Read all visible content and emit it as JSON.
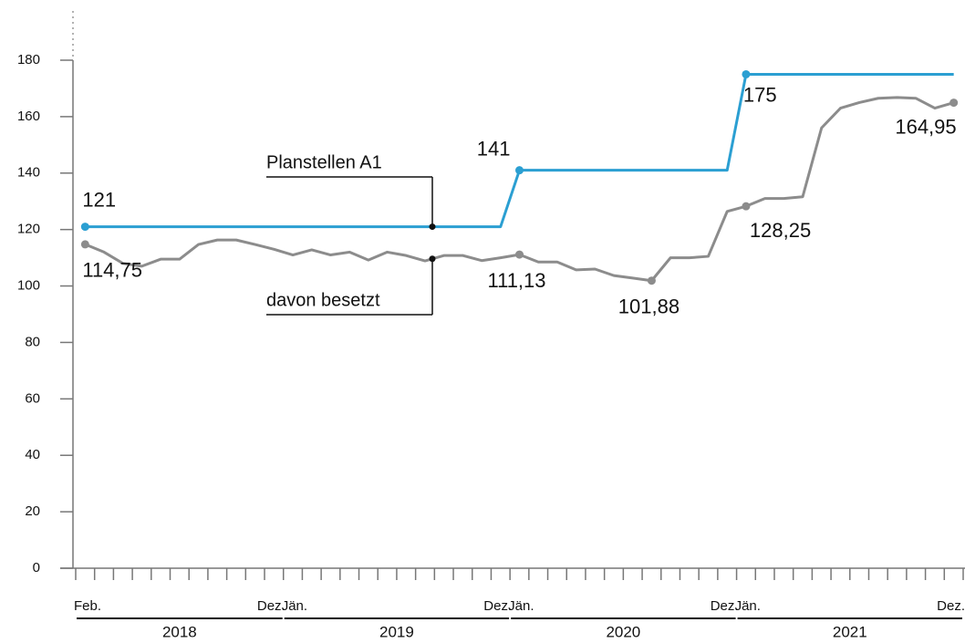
{
  "chart_data": {
    "type": "line",
    "categories": [
      "Feb.",
      null,
      null,
      null,
      null,
      null,
      null,
      null,
      null,
      null,
      "Dez.",
      "Jän.",
      null,
      null,
      null,
      null,
      null,
      null,
      null,
      null,
      null,
      null,
      "Dez.",
      "Jän.",
      null,
      null,
      null,
      null,
      null,
      null,
      null,
      null,
      null,
      null,
      "Dez.",
      "Jän.",
      null,
      null,
      null,
      null,
      null,
      null,
      null,
      null,
      null,
      null,
      "Dez."
    ],
    "year_groups": [
      "2018",
      "2019",
      "2020",
      "2021"
    ],
    "series": [
      {
        "name": "Planstellen A1",
        "color": "#2b9fd2",
        "values": [
          121,
          121,
          121,
          121,
          121,
          121,
          121,
          121,
          121,
          121,
          121,
          121,
          121,
          121,
          121,
          121,
          121,
          121,
          121,
          121,
          121,
          121,
          121,
          141,
          141,
          141,
          141,
          141,
          141,
          141,
          141,
          141,
          141,
          141,
          141,
          175,
          175,
          175,
          175,
          175,
          175,
          175,
          175,
          175,
          175,
          175,
          175
        ],
        "value_labels": [
          "121",
          null,
          null,
          null,
          null,
          null,
          null,
          null,
          null,
          null,
          null,
          null,
          null,
          null,
          null,
          null,
          null,
          null,
          null,
          null,
          null,
          null,
          null,
          "141",
          null,
          null,
          null,
          null,
          null,
          null,
          null,
          null,
          null,
          null,
          null,
          "175",
          null,
          null,
          null,
          null,
          null,
          null,
          null,
          null,
          null,
          null,
          null
        ]
      },
      {
        "name": "davon besetzt",
        "color": "#8c8c8c",
        "values": [
          114.75,
          112,
          108,
          107,
          109.5,
          109.5,
          114.7,
          116.3,
          116.3,
          114.7,
          113,
          111,
          112.8,
          111,
          112,
          109.2,
          112,
          110.8,
          108.9,
          110.8,
          110.8,
          109,
          110,
          111.13,
          108.5,
          108.5,
          105.7,
          106,
          103.7,
          102.8,
          101.88,
          110,
          110,
          110.5,
          126.4,
          128.25,
          131,
          131,
          131.6,
          156,
          163,
          165,
          166.5,
          166.8,
          166.5,
          163,
          164.95
        ],
        "value_labels": [
          "114,75",
          null,
          null,
          null,
          null,
          null,
          null,
          null,
          null,
          null,
          null,
          null,
          null,
          null,
          null,
          null,
          null,
          null,
          null,
          null,
          null,
          null,
          null,
          "111,13",
          null,
          null,
          null,
          null,
          null,
          null,
          "101,88",
          null,
          null,
          null,
          null,
          "128,25",
          null,
          null,
          null,
          null,
          null,
          null,
          null,
          null,
          null,
          null,
          "164,95"
        ]
      }
    ],
    "ylim": [
      0,
      180
    ],
    "yticks": [
      0,
      20,
      40,
      60,
      80,
      100,
      120,
      140,
      160,
      180
    ],
    "grid": false
  }
}
